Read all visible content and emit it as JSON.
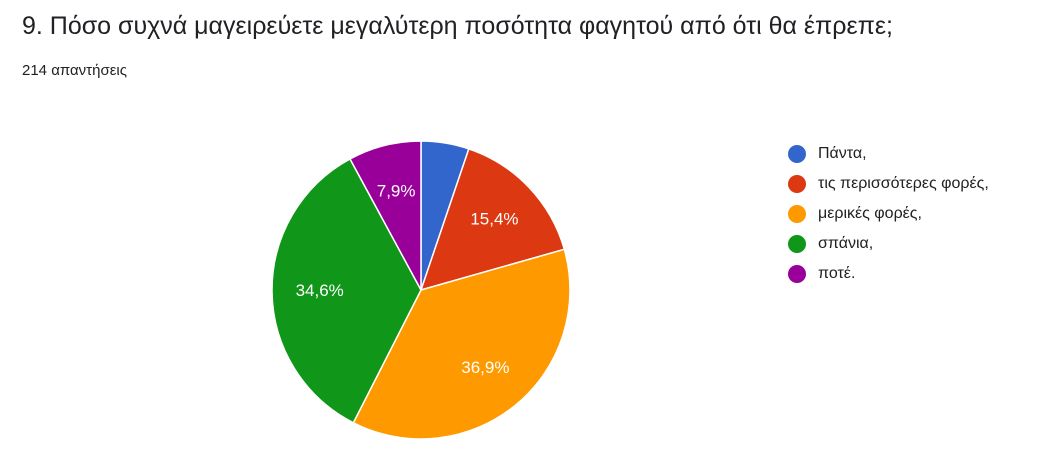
{
  "header": {
    "title": "9. Πόσο συχνά μαγειρεύετε μεγαλύτερη ποσότητα φαγητού από ότι θα έπρεπε;",
    "responses": "214 απαντήσεις"
  },
  "chart_data": {
    "type": "pie",
    "title": "9. Πόσο συχνά μαγειρεύετε μεγαλύτερη ποσότητα φαγητού από ότι θα έπρεπε;",
    "total_responses": 214,
    "start_angle_deg": 90,
    "direction": "clockwise",
    "legend_position": "right",
    "slices": [
      {
        "label": "Πάντα,",
        "value": 5.2,
        "display": "",
        "color": "#3366cc"
      },
      {
        "label": "τις περισσότερες φορές,",
        "value": 15.4,
        "display": "15,4%",
        "color": "#dc3912"
      },
      {
        "label": "μερικές φορές,",
        "value": 36.9,
        "display": "36,9%",
        "color": "#ff9900"
      },
      {
        "label": "σπάνια,",
        "value": 34.6,
        "display": "34,6%",
        "color": "#109618"
      },
      {
        "label": "ποτέ.",
        "value": 7.9,
        "display": "7,9%",
        "color": "#990099"
      }
    ]
  }
}
